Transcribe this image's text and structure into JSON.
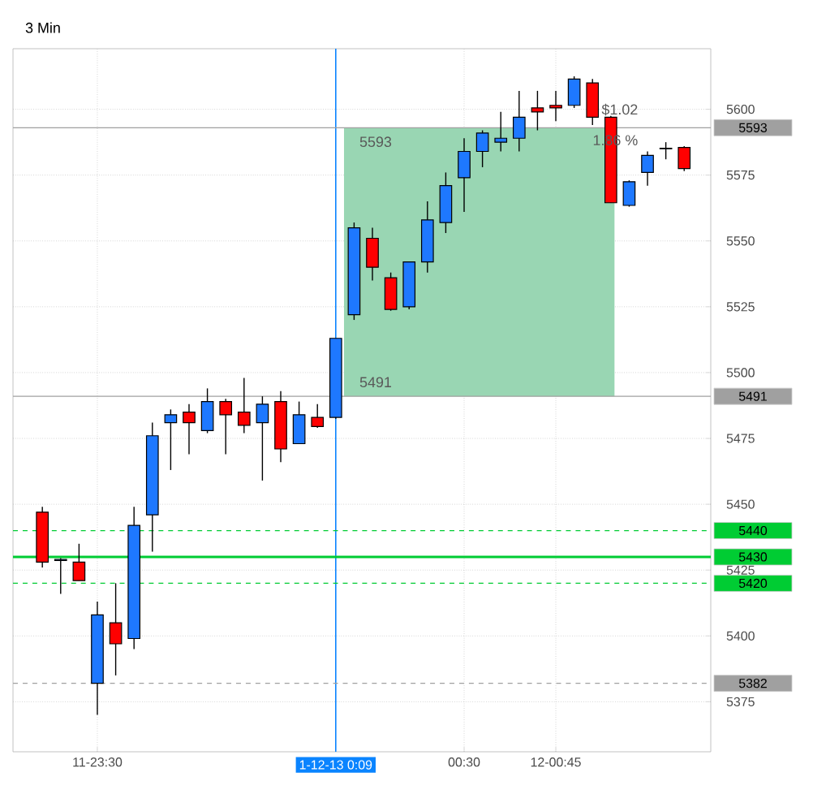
{
  "chart_data": {
    "type": "candlestick",
    "title": "3 Min",
    "categories": [
      null,
      null,
      null,
      "11-23:30",
      null,
      null,
      null,
      null,
      null,
      null,
      null,
      null,
      null,
      null,
      null,
      null,
      "1-12-13  0:09",
      null,
      null,
      null,
      null,
      null,
      null,
      "00:30",
      null,
      null,
      null,
      null,
      "12-00:45",
      null,
      null,
      null,
      null,
      null,
      null,
      null
    ],
    "ohlc": [
      [
        5447,
        5449,
        5426,
        5428
      ],
      [
        5429,
        5429.5,
        5416,
        5428.6
      ],
      [
        5428,
        5435,
        5421,
        5421
      ],
      [
        5382,
        5413,
        5370,
        5408
      ],
      [
        5405,
        5420,
        5385,
        5397
      ],
      [
        5399,
        5449,
        5395,
        5442
      ],
      [
        5446,
        5481,
        5432,
        5476
      ],
      [
        5481,
        5486,
        5463,
        5484
      ],
      [
        5485,
        5488,
        5469,
        5481
      ],
      [
        5478,
        5494,
        5477,
        5489
      ],
      [
        5489,
        5490,
        5469,
        5484
      ],
      [
        5485,
        5498,
        5477,
        5480
      ],
      [
        5481,
        5491,
        5459,
        5488
      ],
      [
        5489,
        5493,
        5466,
        5471
      ],
      [
        5473,
        5489,
        5473,
        5484
      ],
      [
        5483,
        5488,
        5479,
        5479.5
      ],
      [
        5483,
        5513,
        5482.5,
        5513
      ],
      [
        5522,
        5557,
        5520,
        5555
      ],
      [
        5551,
        5555,
        5535,
        5540
      ],
      [
        5536,
        5538,
        5523.5,
        5524
      ],
      [
        5525,
        5542,
        5524,
        5542
      ],
      [
        5542,
        5565,
        5538,
        5558
      ],
      [
        5557,
        5576,
        5553,
        5571
      ],
      [
        5574,
        5589,
        5561,
        5584
      ],
      [
        5584,
        5592,
        5578,
        5591
      ],
      [
        5587.5,
        5599,
        5584,
        5589
      ],
      [
        5589,
        5607,
        5584,
        5597
      ],
      [
        5600.5,
        5607,
        5592,
        5599
      ],
      [
        5601.5,
        5607,
        5595.5,
        5600.5
      ],
      [
        5601.5,
        5612.5,
        5600.5,
        5611.5
      ],
      [
        5610,
        5611.5,
        5594,
        5597
      ],
      [
        5597,
        5597.5,
        5564.5,
        5564.5
      ],
      [
        5563.5,
        5573,
        5563,
        5572.5
      ],
      [
        5576,
        5584,
        5571,
        5582.5
      ],
      [
        5585,
        5587.5,
        5581,
        5585.2
      ],
      [
        5585.5,
        5586,
        5576.5,
        5577.5
      ]
    ],
    "colors": [
      "#ff0000",
      "#1e78ff",
      "#ff0000",
      "#1e78ff",
      "#ff0000",
      "#1e78ff",
      "#1e78ff",
      "#1e78ff",
      "#ff0000",
      "#1e78ff",
      "#ff0000",
      "#ff0000",
      "#1e78ff",
      "#ff0000",
      "#1e78ff",
      "#ff0000",
      "#1e78ff",
      "#1e78ff",
      "#ff0000",
      "#ff0000",
      "#1e78ff",
      "#1e78ff",
      "#1e78ff",
      "#1e78ff",
      "#1e78ff",
      "#1e78ff",
      "#1e78ff",
      "#ff0000",
      "#ff0000",
      "#1e78ff",
      "#ff0000",
      "#ff0000",
      "#1e78ff",
      "#1e78ff",
      "#1e78ff",
      "#ff0000"
    ],
    "ylim": [
      5356,
      5623
    ],
    "yticks": [
      5375,
      5400,
      5425,
      5450,
      5475,
      5500,
      5525,
      5550,
      5575,
      5600
    ],
    "grid": true,
    "bands": [
      {
        "axis": "y",
        "from": 5491,
        "to": 5593,
        "color": "#99d6b3"
      }
    ],
    "ref_lines": [
      {
        "axis": "x",
        "value": "1-12-13  0:09",
        "color": "#0a84ff",
        "line_style": "solid"
      },
      {
        "axis": "y",
        "value": 5593,
        "label": "5593",
        "color": "#a0a0a0",
        "line_style": "solid"
      },
      {
        "axis": "y",
        "value": 5491,
        "label": "5491",
        "color": "#a0a0a0",
        "line_style": "solid"
      },
      {
        "axis": "y",
        "value": 5440,
        "label": "5440",
        "color": "#00cc33",
        "line_style": "dashed"
      },
      {
        "axis": "y",
        "value": 5430,
        "label": "5430",
        "color": "#00cc33",
        "line_style": "solid"
      },
      {
        "axis": "y",
        "value": 5420,
        "label": "5420",
        "color": "#00cc33",
        "line_style": "dashed"
      },
      {
        "axis": "y",
        "value": 5382,
        "label": "5382",
        "color": "#a0a0a0",
        "line_style": "dashed"
      }
    ],
    "annotations": [
      "5593",
      "5491",
      "$1.02",
      "1.86 %"
    ]
  }
}
